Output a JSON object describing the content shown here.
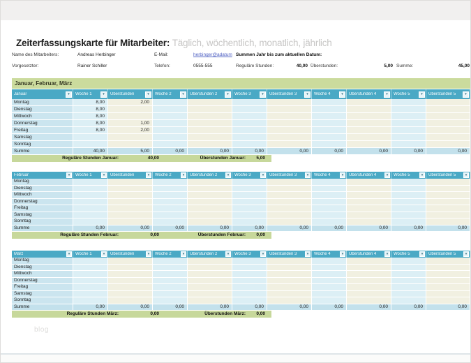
{
  "page": {
    "title_bold": "Zeiterfassungskarte für Mitarbeiter:",
    "title_light": "Täglich, wöchentlich, monatlich, jährlich",
    "watermark": "blog"
  },
  "info": {
    "row1": {
      "label1": "Name des Mitarbeiters:",
      "value1": "Andreas Herbinger",
      "label2": "E-Mail:",
      "email": "herbinger@adatum",
      "summary_label": "Summen Jahr bis zum aktuellen Datum:"
    },
    "row2": {
      "label1": "Vorgesetzter:",
      "value1": "Rainer Schiller",
      "label2": "Telefon:",
      "value2": "0555-555",
      "reg_label": "Reguläre Stunden:",
      "reg_value": "40,00",
      "ot_label": "Überstunden:",
      "ot_value": "5,00",
      "sum_label": "Summe:",
      "sum_value": "45,00"
    }
  },
  "section_header": "Januar, Februar, März",
  "table": {
    "columns": [
      "Woche 1",
      "Überstunden",
      "Woche 2",
      "Überstunden 2",
      "Woche 3",
      "Überstunden 3",
      "Woche 4",
      "Überstunden 4",
      "Woche 5",
      "Überstunden 5"
    ],
    "day_rows": [
      "Montag",
      "Dienstag",
      "Mittwoch",
      "Donnerstag",
      "Freitag",
      "Samstag",
      "Sonntag"
    ],
    "summe_label": "Summe",
    "filter_icon": "▾"
  },
  "months": [
    {
      "name": "Januar",
      "cells": [
        [
          "8,00",
          "2,00",
          "",
          "",
          "",
          "",
          "",
          "",
          "",
          ""
        ],
        [
          "8,00",
          "",
          "",
          "",
          "",
          "",
          "",
          "",
          "",
          ""
        ],
        [
          "8,00",
          "",
          "",
          "",
          "",
          "",
          "",
          "",
          "",
          ""
        ],
        [
          "8,00",
          "1,00",
          "",
          "",
          "",
          "",
          "",
          "",
          "",
          ""
        ],
        [
          "8,00",
          "2,00",
          "",
          "",
          "",
          "",
          "",
          "",
          "",
          ""
        ],
        [
          "",
          "",
          "",
          "",
          "",
          "",
          "",
          "",
          "",
          ""
        ],
        [
          "",
          "",
          "",
          "",
          "",
          "",
          "",
          "",
          "",
          ""
        ]
      ],
      "summe": [
        "40,00",
        "5,00",
        "0,00",
        "0,00",
        "0,00",
        "0,00",
        "0,00",
        "0,00",
        "0,00",
        "0,00"
      ],
      "footer_reg_label": "Reguläre Stunden Januar:",
      "footer_reg_value": "40,00",
      "footer_ot_label": "Überstunden Januar:",
      "footer_ot_value": "5,00"
    },
    {
      "name": "Februar",
      "cells": [
        [
          "",
          "",
          "",
          "",
          "",
          "",
          "",
          "",
          "",
          ""
        ],
        [
          "",
          "",
          "",
          "",
          "",
          "",
          "",
          "",
          "",
          ""
        ],
        [
          "",
          "",
          "",
          "",
          "",
          "",
          "",
          "",
          "",
          ""
        ],
        [
          "",
          "",
          "",
          "",
          "",
          "",
          "",
          "",
          "",
          ""
        ],
        [
          "",
          "",
          "",
          "",
          "",
          "",
          "",
          "",
          "",
          ""
        ],
        [
          "",
          "",
          "",
          "",
          "",
          "",
          "",
          "",
          "",
          ""
        ],
        [
          "",
          "",
          "",
          "",
          "",
          "",
          "",
          "",
          "",
          ""
        ]
      ],
      "summe": [
        "0,00",
        "0,00",
        "0,00",
        "0,00",
        "0,00",
        "0,00",
        "0,00",
        "0,00",
        "0,00",
        "0,00"
      ],
      "footer_reg_label": "Reguläre Stunden Februar:",
      "footer_reg_value": "0,00",
      "footer_ot_label": "Überstunden Februar:",
      "footer_ot_value": "0,00"
    },
    {
      "name": "März",
      "cells": [
        [
          "",
          "",
          "",
          "",
          "",
          "",
          "",
          "",
          "",
          ""
        ],
        [
          "",
          "",
          "",
          "",
          "",
          "",
          "",
          "",
          "",
          ""
        ],
        [
          "",
          "",
          "",
          "",
          "",
          "",
          "",
          "",
          "",
          ""
        ],
        [
          "",
          "",
          "",
          "",
          "",
          "",
          "",
          "",
          "",
          ""
        ],
        [
          "",
          "",
          "",
          "",
          "",
          "",
          "",
          "",
          "",
          ""
        ],
        [
          "",
          "",
          "",
          "",
          "",
          "",
          "",
          "",
          "",
          ""
        ],
        [
          "",
          "",
          "",
          "",
          "",
          "",
          "",
          "",
          "",
          ""
        ]
      ],
      "summe": [
        "0,00",
        "0,00",
        "0,00",
        "0,00",
        "0,00",
        "0,00",
        "0,00",
        "0,00",
        "0,00",
        "0,00"
      ],
      "footer_reg_label": "Reguläre Stunden März:",
      "footer_reg_value": "0,00",
      "footer_ot_label": "Überstunden März:",
      "footer_ot_value": "0,00"
    }
  ],
  "colors": {
    "header_teal": "#4AA9C5",
    "section_green": "#CBDB9D",
    "footer_green": "#C7D89B",
    "day_fill": "#CBE5EF",
    "woche_fill": "#DCEFF5",
    "ueberstunden_fill": "#F1F0E1",
    "summe_fill": "#C3E1EC",
    "link_blue": "#5263C4"
  }
}
